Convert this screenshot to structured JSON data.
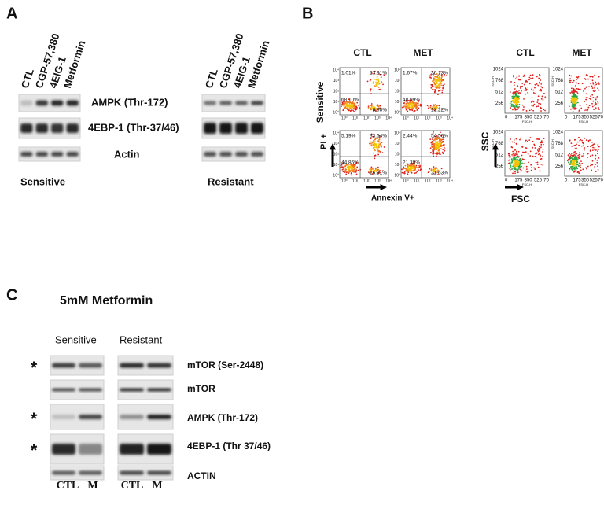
{
  "panel_a": {
    "label": "A",
    "sensitive_lanes": [
      "CTL",
      "CGP-57,380",
      "4EIG-1",
      "Metformin"
    ],
    "resistant_lanes": [
      "CTL",
      "CGP-57,380",
      "4EIG-1",
      "Metformin"
    ],
    "rows": [
      "AMPK (Thr-172)",
      "4EBP-1 (Thr-37/46)",
      "Actin"
    ],
    "groups": [
      "Sensitive",
      "Resistant"
    ]
  },
  "panel_b": {
    "label": "B",
    "columns": [
      "CTL",
      "MET",
      "CTL",
      "MET"
    ],
    "row_label": "Sensitive",
    "apoptosis_y_label": "PI +",
    "apoptosis_x_label": "Annexin V+",
    "scatter_y_label": "SSC",
    "scatter_x_label": "FSC",
    "quadrants": [
      [
        "1.01%",
        "23.91%",
        "68.10%",
        "6.98%"
      ],
      [
        "1.67%",
        "36.13%",
        "48.99%",
        "13.22%"
      ],
      [
        "5.19%",
        "33.64%",
        "44.86%",
        "16.31%"
      ],
      [
        "2.44%",
        "54.56%",
        "21.38%",
        "21.63%"
      ]
    ],
    "flow_ticks": [
      "10⁰",
      "10¹",
      "10²",
      "10³",
      "10⁴"
    ],
    "scatter_yticks": [
      "1024",
      "768",
      "512",
      "256"
    ],
    "scatter_xticks": [
      "0",
      "175",
      "350",
      "525",
      "70"
    ],
    "scatter_axis_titles": [
      "FSC-H",
      "SSC-H"
    ]
  },
  "panel_c": {
    "label": "C",
    "title": "5mM Metformin",
    "groups": [
      "Sensitive",
      "Resistant"
    ],
    "rows": [
      "mTOR (Ser-2448)",
      "mTOR",
      "AMPK (Thr-172)",
      "4EBP-1 (Thr 37/46)",
      "ACTIN"
    ],
    "asterisks": [
      "*",
      "*",
      "*"
    ],
    "lanes": [
      "CTL",
      "M",
      "CTL",
      "M"
    ]
  }
}
